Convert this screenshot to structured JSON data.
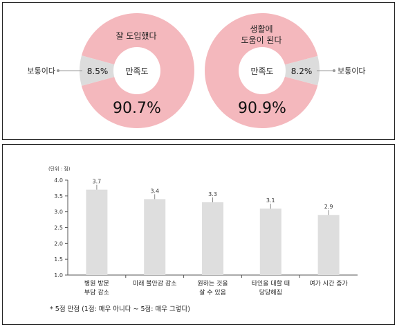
{
  "chart_data": [
    {
      "type": "pie",
      "center_label": "만족도",
      "slices": [
        {
          "label": "잘 도입했다",
          "value": 90.7,
          "value_label": "90.7%",
          "color": "#f4b8bd"
        },
        {
          "label": "보통이다",
          "value": 8.5,
          "value_label": "8.5%",
          "color": "#dcdcdc"
        }
      ]
    },
    {
      "type": "pie",
      "center_label": "만족도",
      "slices": [
        {
          "label": "생활에 도움이 된다",
          "label_lines": [
            "생활에",
            "도움이 된다"
          ],
          "value": 90.9,
          "value_label": "90.9%",
          "color": "#f4b8bd"
        },
        {
          "label": "보통이다",
          "value": 8.2,
          "value_label": "8.2%",
          "color": "#dcdcdc"
        }
      ]
    },
    {
      "type": "bar",
      "unit_label": "(단위 : 점)",
      "categories": [
        [
          "병원 방문",
          "부담 감소"
        ],
        [
          "미래 불안감 감소"
        ],
        [
          "원하는 것을",
          "살 수 있음"
        ],
        [
          "타인을 대할 때",
          "당당해짐"
        ],
        [
          "여가 시간 증가"
        ]
      ],
      "values": [
        3.7,
        3.4,
        3.3,
        3.1,
        2.9
      ],
      "value_labels": [
        "3.7",
        "3.4",
        "3.3",
        "3.1",
        "2.9"
      ],
      "ylim": [
        1.0,
        4.0
      ],
      "yticks": [
        "1.0",
        "1.5",
        "2.0",
        "2.5",
        "3.0",
        "3.5",
        "4.0"
      ],
      "bar_color": "#dedede",
      "footnote": "* 5점 만점 (1점: 매우 아니다 ~ 5점: 매우 그렇다)"
    }
  ]
}
